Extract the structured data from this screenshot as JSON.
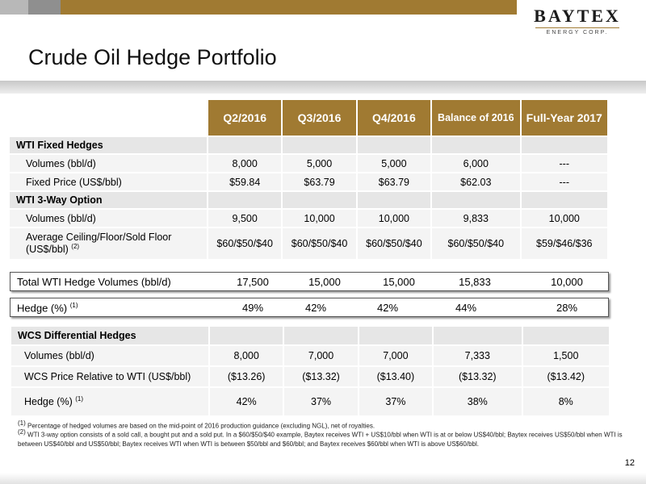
{
  "logo": {
    "name": "BAYTEX",
    "sub": "ENERGY CORP."
  },
  "title": "Crude Oil Hedge Portfolio",
  "headers": [
    "Q2/2016",
    "Q3/2016",
    "Q4/2016",
    "Balance of 2016",
    "Full-Year 2017"
  ],
  "wti_fixed": {
    "section": "WTI Fixed Hedges",
    "rows": [
      {
        "label": "Volumes (bbl/d)",
        "values": [
          "8,000",
          "5,000",
          "5,000",
          "6,000",
          "---"
        ]
      },
      {
        "label": "Fixed Price (US$/bbl)",
        "values": [
          "$59.84",
          "$63.79",
          "$63.79",
          "$62.03",
          "---"
        ]
      }
    ]
  },
  "wti_3way": {
    "section": "WTI 3-Way Option",
    "rows": [
      {
        "label": "Volumes (bbl/d)",
        "values": [
          "9,500",
          "10,000",
          "10,000",
          "9,833",
          "10,000"
        ]
      },
      {
        "label": "Average Ceiling/Floor/Sold Floor (US$/bbl)",
        "note": "(2)",
        "values": [
          "$60/$50/$40",
          "$60/$50/$40",
          "$60/$50/$40",
          "$60/$50/$40",
          "$59/$46/$36"
        ]
      }
    ]
  },
  "total_wti": {
    "label": "Total WTI Hedge Volumes (bbl/d)",
    "values": [
      "17,500",
      "15,000",
      "15,000",
      "15,833",
      "10,000"
    ]
  },
  "hedge_pct": {
    "label": "Hedge (%)",
    "note": "(1)",
    "values": [
      "49%",
      "42%",
      "42%",
      "44%",
      "28%"
    ]
  },
  "wcs": {
    "section": "WCS Differential Hedges",
    "rows": [
      {
        "label": "Volumes (bbl/d)",
        "values": [
          "8,000",
          "7,000",
          "7,000",
          "7,333",
          "1,500"
        ]
      },
      {
        "label": "WCS Price Relative to WTI (US$/bbl)",
        "values": [
          "($13.26)",
          "($13.32)",
          "($13.40)",
          "($13.32)",
          "($13.42)"
        ]
      },
      {
        "label": "Hedge (%)",
        "note": "(1)",
        "values": [
          "42%",
          "37%",
          "37%",
          "38%",
          "8%"
        ]
      }
    ]
  },
  "footnotes": [
    {
      "mark": "(1)",
      "text": "Percentage of hedged volumes are based on the mid-point of 2016 production guidance (excluding NGL), net of royalties."
    },
    {
      "mark": "(2)",
      "text": "WTI 3-way option consists of a sold call, a bought put and a sold put. In a $60/$50/$40 example, Baytex receives WTI + US$10/bbl when WTI is at or below US$40/bbl; Baytex receives US$50/bbl when WTI is between US$40/bbl and US$50/bbl; Baytex receives WTI when WTI is between $50/bbl and $60/bbl; and Baytex receives $60/bbl when WTI is above US$60/bbl."
    }
  ],
  "page_number": "12"
}
